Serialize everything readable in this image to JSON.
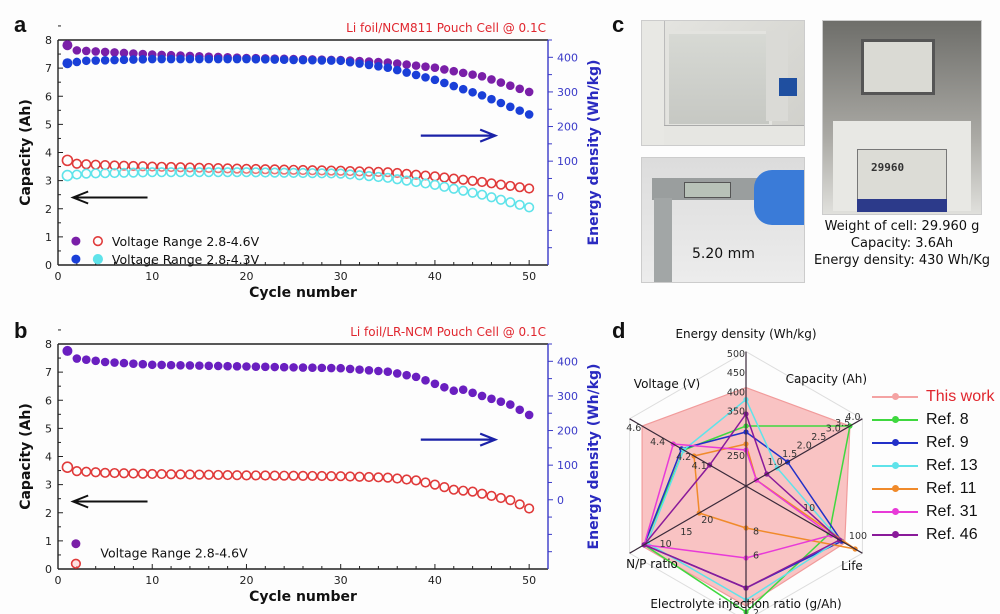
{
  "panels": {
    "a": {
      "letter": "a"
    },
    "b": {
      "letter": "b"
    },
    "c": {
      "letter": "c",
      "caliper_label": "5.20 mm",
      "scale_display": "29960",
      "caption_lines": [
        "Weight of cell: 29.960 g",
        "Capacity: 3.6Ah",
        "Energy density: 430 Wh/Kg"
      ]
    },
    "d": {
      "letter": "d"
    }
  },
  "chart_data": [
    {
      "id": "a",
      "type": "scatter",
      "title": "Li foil/NCM811 Pouch Cell @ 0.1C",
      "xlabel": "Cycle number",
      "ylabel": "Capacity (Ah)",
      "y2label": "Energy density (Wh/kg)",
      "xlim": [
        0,
        52
      ],
      "ylim": [
        0,
        8
      ],
      "y2lim": [
        -200,
        450
      ],
      "xticks": [
        0,
        10,
        20,
        30,
        40,
        50
      ],
      "yticks": [
        0,
        1,
        2,
        3,
        4,
        5,
        6,
        7,
        8
      ],
      "y2ticks": [
        0,
        100,
        200,
        300,
        400
      ],
      "legend": [
        {
          "label": "Voltage Range 2.8-4.6V",
          "filled_color": "#7a1fa8",
          "open_color": "#e03a3a"
        },
        {
          "label": "Voltage Range 2.8-4.3V",
          "filled_color": "#1a3fd8",
          "open_color": "#5fe3ea"
        }
      ],
      "annotations": [
        {
          "type": "arrow",
          "direction": "left",
          "meaning": "capacity axis",
          "color": "#111111"
        },
        {
          "type": "arrow",
          "direction": "right",
          "meaning": "energy density axis",
          "color": "#1b22a8"
        }
      ],
      "series": [
        {
          "name": "2.8-4.6V capacity",
          "axis": "left",
          "style": "open",
          "color": "#e03a3a",
          "x_start": 1,
          "x_end": 50,
          "keypoints": [
            [
              1,
              3.72
            ],
            [
              2,
              3.6
            ],
            [
              5,
              3.55
            ],
            [
              10,
              3.5
            ],
            [
              20,
              3.42
            ],
            [
              30,
              3.35
            ],
            [
              35,
              3.3
            ],
            [
              40,
              3.15
            ],
            [
              45,
              2.95
            ],
            [
              50,
              2.72
            ]
          ]
        },
        {
          "name": "2.8-4.3V capacity",
          "axis": "left",
          "style": "open",
          "color": "#5fe3ea",
          "x_start": 1,
          "x_end": 50,
          "keypoints": [
            [
              1,
              3.18
            ],
            [
              3,
              3.25
            ],
            [
              10,
              3.3
            ],
            [
              20,
              3.3
            ],
            [
              30,
              3.25
            ],
            [
              35,
              3.1
            ],
            [
              40,
              2.85
            ],
            [
              45,
              2.5
            ],
            [
              50,
              2.05
            ]
          ]
        },
        {
          "name": "2.8-4.6V energy density",
          "axis": "right",
          "style": "filled",
          "color": "#7a1fa8",
          "x_start": 1,
          "x_end": 50,
          "keypoints": [
            [
              1,
              435
            ],
            [
              2,
              420
            ],
            [
              10,
              408
            ],
            [
              20,
              398
            ],
            [
              30,
              392
            ],
            [
              35,
              385
            ],
            [
              40,
              370
            ],
            [
              45,
              345
            ],
            [
              50,
              300
            ]
          ]
        },
        {
          "name": "2.8-4.3V energy density",
          "axis": "right",
          "style": "filled",
          "color": "#1a3fd8",
          "x_start": 1,
          "x_end": 50,
          "keypoints": [
            [
              1,
              383
            ],
            [
              3,
              390
            ],
            [
              10,
              395
            ],
            [
              20,
              395
            ],
            [
              30,
              390
            ],
            [
              35,
              370
            ],
            [
              40,
              335
            ],
            [
              45,
              290
            ],
            [
              50,
              235
            ]
          ]
        }
      ]
    },
    {
      "id": "b",
      "type": "scatter",
      "title": "Li foil/LR-NCM Pouch Cell @ 0.1C",
      "xlabel": "Cycle number",
      "ylabel": "Capacity (Ah)",
      "y2label": "Energy density (Wh/kg)",
      "xlim": [
        0,
        52
      ],
      "ylim": [
        0,
        8
      ],
      "y2lim": [
        -200,
        450
      ],
      "xticks": [
        0,
        10,
        20,
        30,
        40,
        50
      ],
      "yticks": [
        0,
        1,
        2,
        3,
        4,
        5,
        6,
        7,
        8
      ],
      "y2ticks": [
        0,
        100,
        200,
        300,
        400
      ],
      "legend": [
        {
          "label": "Voltage Range 2.8-4.6V",
          "filled_color": "#7a1fa8",
          "open_color": "#e03a3a"
        }
      ],
      "annotations": [
        {
          "type": "arrow",
          "direction": "left",
          "meaning": "capacity axis",
          "color": "#111111"
        },
        {
          "type": "arrow",
          "direction": "right",
          "meaning": "energy density axis",
          "color": "#1b22a8"
        }
      ],
      "series": [
        {
          "name": "2.8-4.6V capacity",
          "axis": "left",
          "style": "open",
          "color": "#e03a3a",
          "x_start": 1,
          "x_end": 50,
          "keypoints": [
            [
              1,
              3.62
            ],
            [
              2,
              3.48
            ],
            [
              5,
              3.42
            ],
            [
              10,
              3.38
            ],
            [
              20,
              3.33
            ],
            [
              30,
              3.3
            ],
            [
              35,
              3.25
            ],
            [
              38,
              3.15
            ],
            [
              40,
              3.0
            ],
            [
              42,
              2.82
            ],
            [
              44,
              2.75
            ],
            [
              46,
              2.6
            ],
            [
              48,
              2.45
            ],
            [
              50,
              2.15
            ]
          ]
        },
        {
          "name": "2.8-4.6V energy density",
          "axis": "right",
          "style": "filled",
          "color": "#6a1fc0",
          "x_start": 1,
          "x_end": 50,
          "keypoints": [
            [
              1,
              430
            ],
            [
              2,
              408
            ],
            [
              5,
              398
            ],
            [
              10,
              390
            ],
            [
              20,
              385
            ],
            [
              30,
              380
            ],
            [
              35,
              370
            ],
            [
              38,
              355
            ],
            [
              40,
              335
            ],
            [
              42,
              315
            ],
            [
              43,
              318
            ],
            [
              45,
              300
            ],
            [
              48,
              275
            ],
            [
              50,
              245
            ]
          ]
        }
      ]
    },
    {
      "id": "d",
      "type": "radar",
      "axes": [
        "Energy density (Wh/kg)",
        "Capacity (Ah)",
        "Life",
        "Electrolyte injection ratio (g/Ah)",
        "N/P ratio",
        "Voltage (V)"
      ],
      "axis_tick_labels": {
        "Energy density (Wh/kg)": [
          "250",
          "350",
          "400",
          "450",
          "500"
        ],
        "Capacity (Ah)": [
          "1.0",
          "1.5",
          "2.0",
          "2.5",
          "3.0",
          "3.5",
          "4.0"
        ],
        "Life": [
          "10",
          "100"
        ],
        "Electrolyte injection ratio (g/Ah)": [
          "8",
          "6",
          "2"
        ],
        "N/P ratio": [
          "20",
          "15",
          "10"
        ],
        "Voltage (V)": [
          "4.1",
          "4.2",
          "4.4",
          "4.6"
        ]
      },
      "series": [
        {
          "name": "This work",
          "color": "#f4a3a3",
          "fill": true,
          "values_norm": [
            0.82,
            1.0,
            0.95,
            1.0,
            1.0,
            1.0
          ]
        },
        {
          "name": "Ref. 8",
          "color": "#3fd83f",
          "values_norm": [
            0.5,
            1.0,
            0.8,
            1.05,
            0.98,
            0.6
          ]
        },
        {
          "name": "Ref. 9",
          "color": "#2230c8",
          "values_norm": [
            0.45,
            0.4,
            0.92,
            0.85,
            0.98,
            0.62
          ]
        },
        {
          "name": "Ref. 13",
          "color": "#5fe3ea",
          "values_norm": [
            0.72,
            0.3,
            0.9,
            0.95,
            0.95,
            0.6
          ]
        },
        {
          "name": "Ref. 11",
          "color": "#f08a2a",
          "values_norm": [
            0.35,
            0.1,
            1.05,
            0.35,
            0.45,
            0.5
          ]
        },
        {
          "name": "Ref. 31",
          "color": "#e83ad8",
          "values_norm": [
            0.3,
            0.1,
            0.82,
            0.6,
            0.98,
            0.7
          ]
        },
        {
          "name": "Ref. 46",
          "color": "#8a1a9a",
          "values_norm": [
            0.6,
            0.2,
            0.9,
            0.85,
            0.98,
            0.35
          ]
        }
      ],
      "legend_position": "right"
    }
  ]
}
